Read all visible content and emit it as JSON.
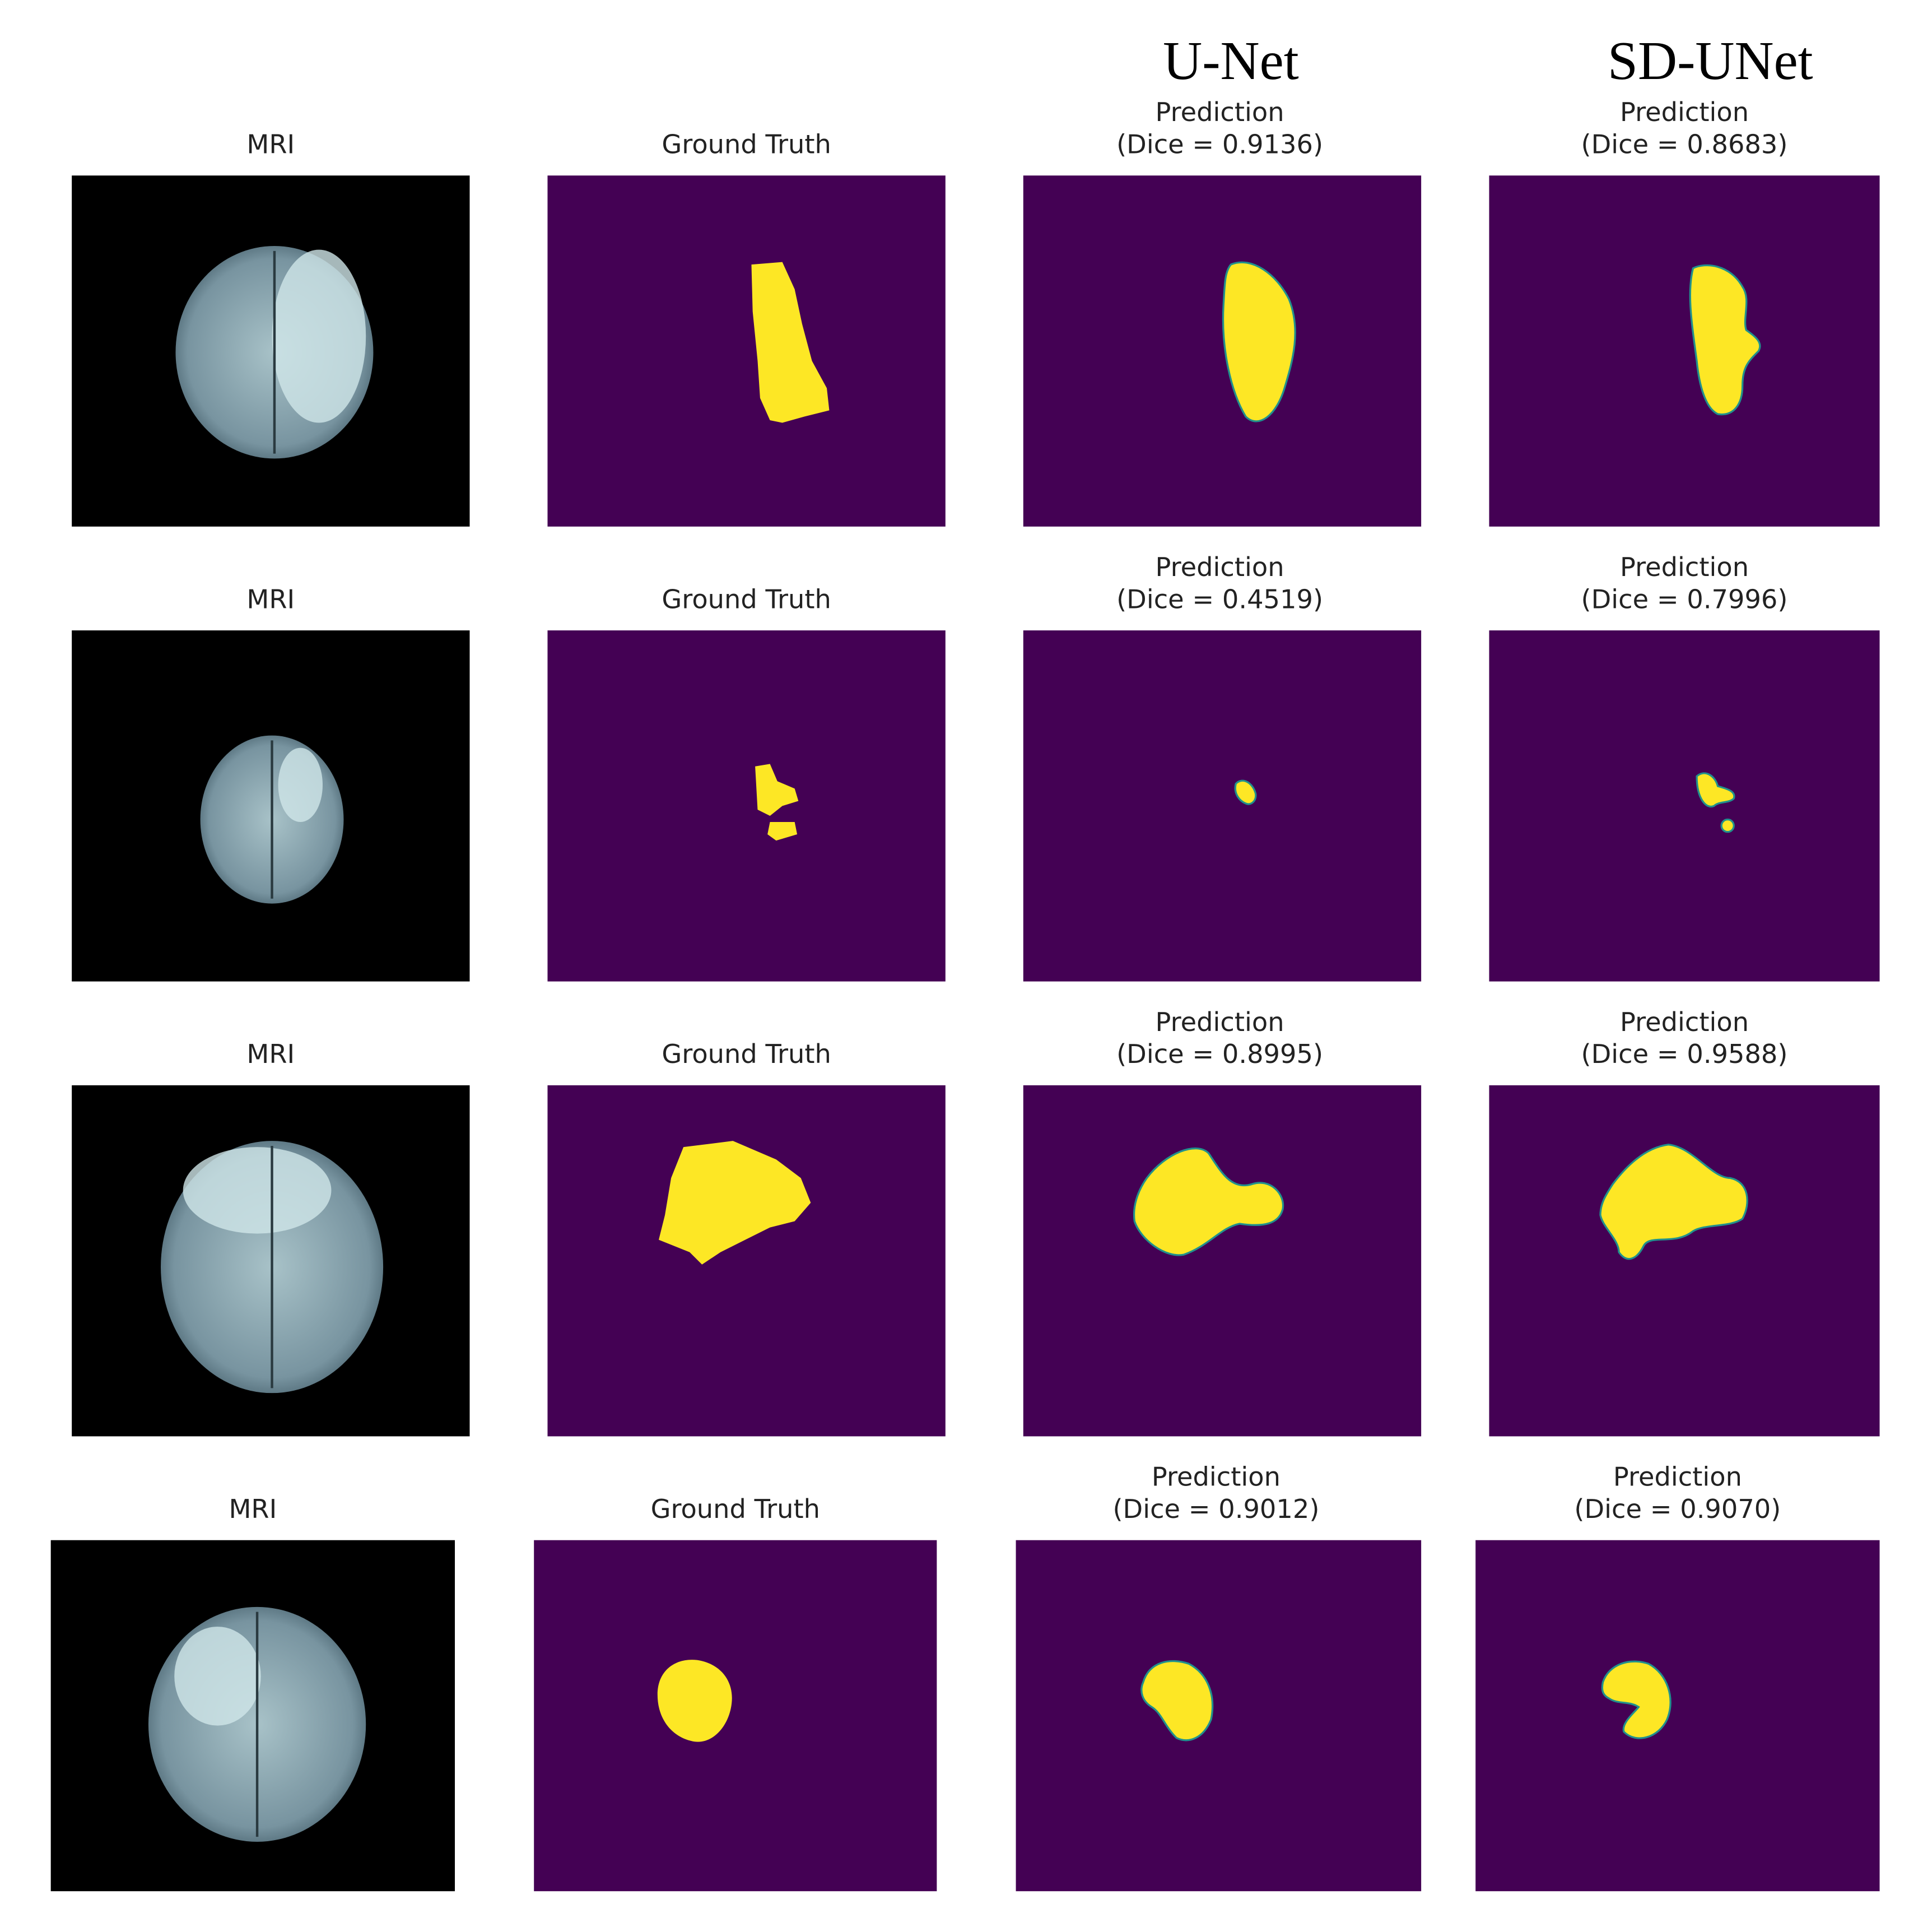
{
  "column_headers": [
    "U-Net",
    "SD-UNet"
  ],
  "rows": [
    {
      "mri_title": "MRI",
      "gt_title": "Ground Truth",
      "unet_title": [
        "Prediction",
        "(Dice = 0.9136)"
      ],
      "sdunet_title": [
        "Prediction",
        "(Dice = 0.8683)"
      ]
    },
    {
      "mri_title": "MRI",
      "gt_title": "Ground Truth",
      "unet_title": [
        "Prediction",
        "(Dice = 0.4519)"
      ],
      "sdunet_title": [
        "Prediction",
        "(Dice = 0.7996)"
      ]
    },
    {
      "mri_title": "MRI",
      "gt_title": "Ground Truth",
      "unet_title": [
        "Prediction",
        "(Dice = 0.8995)"
      ],
      "sdunet_title": [
        "Prediction",
        "(Dice = 0.9588)"
      ]
    },
    {
      "mri_title": "MRI",
      "gt_title": "Ground Truth",
      "unet_title": [
        "Prediction",
        "(Dice = 0.9012)"
      ],
      "sdunet_title": [
        "Prediction",
        "(Dice = 0.9070)"
      ]
    }
  ]
}
